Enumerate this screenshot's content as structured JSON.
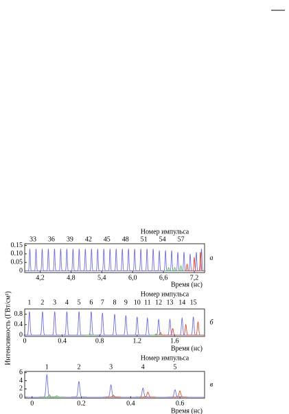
{
  "chart_data": [
    {
      "type": "pulse",
      "title": "Номер импульса",
      "xlabel": "Время (нс)",
      "panel": "а",
      "ylabel": "Интенсивность (ГВт/см²)",
      "xlim": [
        3.9,
        7.4
      ],
      "ylim": [
        -0.01,
        0.16
      ],
      "xticks": [
        {
          "value": 4.2,
          "label": "4,2"
        },
        {
          "value": 4.8,
          "label": "4,8"
        },
        {
          "value": 5.4,
          "label": "5,4"
        },
        {
          "value": 6.0,
          "label": "6,0"
        },
        {
          "value": 6.6,
          "label": "6,6"
        },
        {
          "value": 7.2,
          "label": "7,2"
        }
      ],
      "yticks": [
        0,
        0.05,
        {
          "value": 0.1,
          "label": "0.10"
        },
        0.15
      ],
      "pulse_numbers": [
        33,
        36,
        39,
        42,
        45,
        48,
        51,
        54,
        57
      ],
      "pulse_number_x": [
        4.06,
        4.42,
        4.78,
        5.14,
        5.5,
        5.86,
        6.22,
        6.58,
        6.94
      ],
      "series": [
        {
          "color": "#6f6fd8",
          "x": [
            4.0,
            4.12,
            4.24,
            4.36,
            4.48,
            4.6,
            4.72,
            4.84,
            4.96,
            5.08,
            5.2,
            5.32,
            5.44,
            5.56,
            5.68,
            5.8,
            5.92,
            6.04,
            6.16,
            6.28,
            6.4,
            6.52,
            6.64,
            6.76,
            6.88,
            7.0,
            7.12,
            7.24,
            7.34
          ],
          "values": [
            0.13,
            0.13,
            0.13,
            0.13,
            0.13,
            0.13,
            0.13,
            0.13,
            0.13,
            0.13,
            0.13,
            0.13,
            0.13,
            0.13,
            0.13,
            0.13,
            0.13,
            0.13,
            0.13,
            0.13,
            0.13,
            0.12,
            0.12,
            0.12,
            0.11,
            0.11,
            0.1,
            0.11,
            0.13
          ]
        },
        {
          "color": "#e04a2a",
          "x": [
            7.06,
            7.2,
            7.32
          ],
          "values": [
            0.04,
            0.08,
            0.11
          ]
        },
        {
          "color": "#5cb85c",
          "x": [
            6.7,
            6.82,
            6.94
          ],
          "values": [
            0.02,
            0.02,
            0.03
          ]
        }
      ]
    },
    {
      "type": "pulse",
      "title": "Номер импульса",
      "xlabel": "Время (нс)",
      "panel": "б",
      "xlim": [
        0,
        1.92
      ],
      "ylim": [
        -0.05,
        1.0
      ],
      "xticks": [
        0,
        0.4,
        0.8,
        1.2,
        1.6
      ],
      "yticks": [
        0,
        0.4,
        0.8
      ],
      "pulse_numbers": [
        1,
        2,
        3,
        4,
        5,
        6,
        7,
        8,
        9,
        10,
        11,
        12,
        13,
        14,
        15
      ],
      "pulse_number_x": [
        0.05,
        0.19,
        0.32,
        0.45,
        0.58,
        0.71,
        0.83,
        0.96,
        1.08,
        1.2,
        1.31,
        1.43,
        1.55,
        1.68,
        1.8
      ],
      "series": [
        {
          "color": "#6f6fd8",
          "x": [
            0.05,
            0.19,
            0.32,
            0.45,
            0.58,
            0.71,
            0.83,
            0.96,
            1.08,
            1.2,
            1.31,
            1.43,
            1.55,
            1.68,
            1.8
          ],
          "values": [
            0.9,
            0.9,
            0.9,
            0.9,
            0.9,
            0.9,
            0.85,
            0.8,
            0.75,
            0.7,
            0.65,
            0.6,
            0.6,
            0.65,
            0.7
          ]
        },
        {
          "color": "#e04a2a",
          "x": [
            1.45,
            1.58,
            1.72,
            1.85
          ],
          "values": [
            0.1,
            0.25,
            0.4,
            0.5
          ]
        },
        {
          "color": "#5cb85c",
          "x": [
            0.7,
            1.4
          ],
          "values": [
            0.04,
            0.04
          ]
        }
      ]
    },
    {
      "type": "pulse",
      "title": "Номер импульса",
      "xlabel": "Время (нс)",
      "panel": "в",
      "xlim": [
        -0.03,
        0.7
      ],
      "ylim": [
        -0.3,
        6.3
      ],
      "xticks": [
        0,
        0.2,
        0.4,
        0.6
      ],
      "yticks": [
        0,
        2,
        4,
        6
      ],
      "pulse_numbers": [
        1,
        2,
        3,
        4,
        5
      ],
      "pulse_number_x": [
        0.06,
        0.19,
        0.32,
        0.45,
        0.58
      ],
      "series": [
        {
          "color": "#6f6fd8",
          "x": [
            0.06,
            0.19,
            0.32,
            0.45,
            0.58
          ],
          "values": [
            5.5,
            3.8,
            3.0,
            2.2,
            1.8
          ]
        },
        {
          "color": "#e04a2a",
          "x": [
            0.33,
            0.47,
            0.6
          ],
          "values": [
            0.4,
            1.2,
            1.5
          ]
        },
        {
          "color": "#5cb85c",
          "x": [
            0.07,
            0.1
          ],
          "values": [
            0.5,
            0.3
          ]
        }
      ]
    }
  ]
}
